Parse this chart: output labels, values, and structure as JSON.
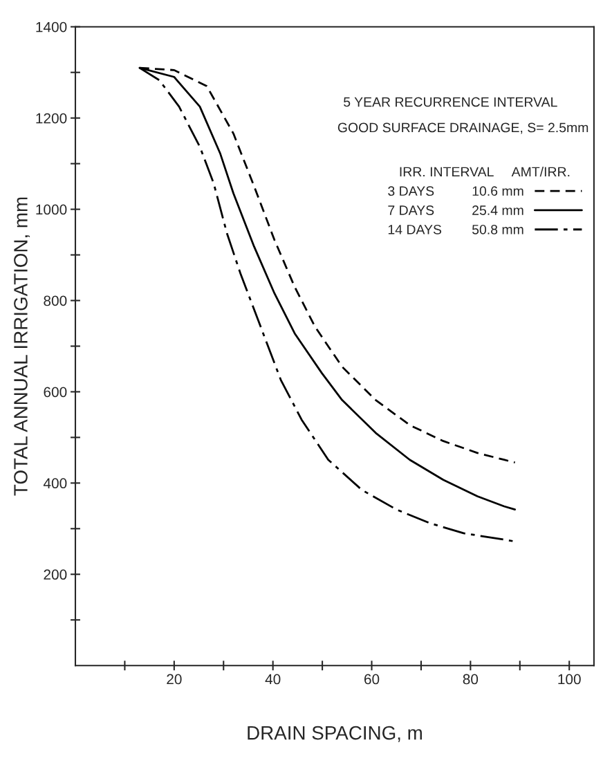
{
  "chart_data": {
    "type": "line",
    "xlabel": "DRAIN SPACING, m",
    "ylabel": "TOTAL ANNUAL IRRIGATION, mm",
    "legend_title": "IRR. INTERVAL     AMT/IRR.",
    "annotations": [
      "5 YEAR RECURRENCE INTERVAL",
      "GOOD SURFACE DRAINAGE, S= 2.5mm"
    ],
    "xlim": [
      0,
      105
    ],
    "ylim": [
      0,
      1400
    ],
    "xticks": [
      {
        "value": 10,
        "label": null
      },
      20,
      {
        "value": 30,
        "label": null
      },
      40,
      {
        "value": 50,
        "label": null
      },
      60,
      {
        "value": 70,
        "label": null
      },
      80,
      {
        "value": 90,
        "label": null
      },
      100
    ],
    "yticks": [
      {
        "value": 100,
        "label": null
      },
      200,
      {
        "value": 300,
        "label": null
      },
      400,
      {
        "value": 500,
        "label": null
      },
      600,
      {
        "value": 700,
        "label": null
      },
      800,
      {
        "value": 900,
        "label": null
      },
      1000,
      {
        "value": 1100,
        "label": null
      },
      1200,
      {
        "value": 1300,
        "label": null
      },
      1400
    ],
    "grid": false,
    "legend": "top right",
    "marker": "none",
    "series": [
      {
        "name": "3 DAYS          10.6 mm",
        "color": "#000000",
        "line_style": "dashed",
        "x": [
          13,
          20,
          26.6,
          32,
          36.2,
          40.3,
          44.4,
          48.5,
          54,
          60.8,
          67.7,
          74.5,
          81.4,
          86.8,
          89
        ],
        "values": [
          1310,
          1305,
          1270,
          1166,
          1050,
          933,
          830,
          743,
          655,
          582,
          527,
          492,
          466,
          451,
          445
        ]
      },
      {
        "name": "7 DAYS          25.4 mm",
        "color": "#000000",
        "line_style": "solid",
        "x": [
          13,
          20,
          25.2,
          29.3,
          32,
          36.2,
          40.3,
          44.4,
          49.9,
          54,
          60.8,
          67.7,
          74.5,
          81.4,
          86.8,
          89
        ],
        "values": [
          1310,
          1290,
          1225,
          1123,
          1035,
          918,
          816,
          728,
          641,
          582,
          510,
          451,
          407,
          371,
          349,
          342
        ]
      },
      {
        "name": "14 DAYS        50.8 mm",
        "color": "#000000",
        "line_style": "dashdot",
        "x": [
          13,
          17,
          21,
          25.2,
          28,
          30.7,
          33.4,
          37.5,
          41.6,
          45.8,
          51.2,
          58,
          65,
          71.8,
          78.6,
          86.8,
          89
        ],
        "values": [
          1310,
          1283,
          1225,
          1137,
          1057,
          947,
          860,
          743,
          626,
          539,
          451,
          385,
          342,
          312,
          290,
          276,
          272
        ]
      }
    ]
  }
}
